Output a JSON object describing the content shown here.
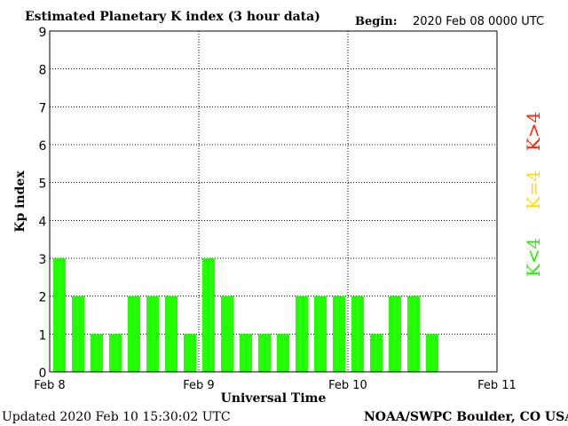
{
  "chart_data": {
    "type": "bar",
    "title": "Estimated Planetary K index (3 hour data)",
    "begin_label": "Begin:",
    "begin_value": "2020 Feb 08 0000 UTC",
    "ylabel": "Kp index",
    "xlabel": "Universal Time",
    "ylim": [
      0,
      9
    ],
    "yticks": [
      0,
      1,
      2,
      3,
      4,
      5,
      6,
      7,
      8,
      9
    ],
    "xlim_hours": [
      0,
      72
    ],
    "interval_hours": 3,
    "xticks": [
      {
        "hour": 0,
        "label": "Feb 8"
      },
      {
        "hour": 24,
        "label": "Feb 9"
      },
      {
        "hour": 48,
        "label": "Feb 10"
      },
      {
        "hour": 72,
        "label": "Feb 11"
      }
    ],
    "values": [
      3,
      2,
      1,
      1,
      2,
      2,
      2,
      1,
      3,
      2,
      1,
      1,
      1,
      2,
      2,
      2,
      2,
      1,
      2,
      2,
      1
    ],
    "bar_color": "#22ff00",
    "grid": "dotted",
    "legend": [
      {
        "label": "K<4",
        "color": "#22ee00"
      },
      {
        "label": "K=4",
        "color": "#ffdd00"
      },
      {
        "label": "K>4",
        "color": "#ff2200"
      }
    ],
    "legend_placement": "right"
  },
  "footer": {
    "updated": "Updated 2020 Feb 10 15:30:02 UTC",
    "credit": "NOAA/SWPC Boulder, CO USA"
  }
}
